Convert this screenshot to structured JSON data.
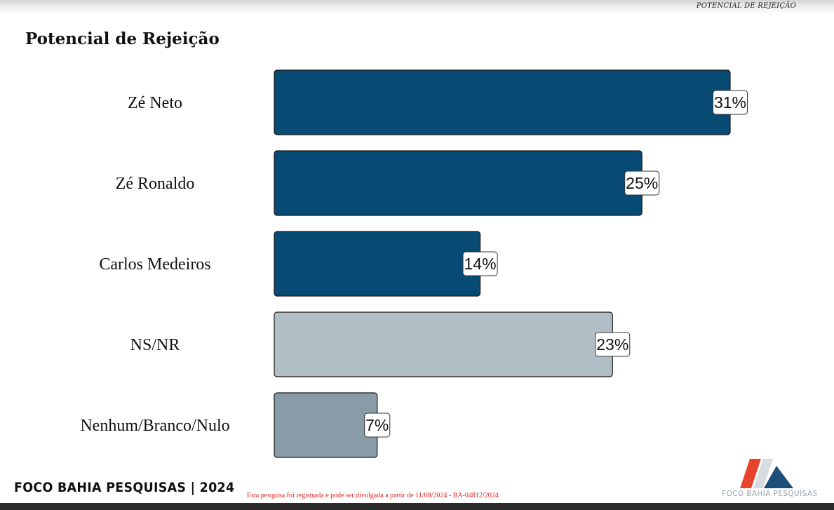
{
  "header": {
    "tag": "POTENCIAL DE REJEIÇÃO"
  },
  "title": "Potencial de Rejeição",
  "chart_data": {
    "type": "bar",
    "orientation": "horizontal",
    "categories": [
      "Zé Neto",
      "Zé Ronaldo",
      "Carlos Medeiros",
      "NS/NR",
      "Nenhum/Branco/Nulo"
    ],
    "values": [
      31,
      25,
      14,
      23,
      7
    ],
    "value_labels": [
      "31%",
      "25%",
      "14%",
      "23%",
      "7%"
    ],
    "colors": [
      "#074b74",
      "#074b74",
      "#074b74",
      "#b1bec6",
      "#8a9ba8"
    ],
    "xlim": [
      0,
      31
    ],
    "grid": false
  },
  "footer": {
    "brand": "FOCO BAHIA PESQUISAS | 2024",
    "note": "Esta pesquisa foi registrada e pode ser divulgada a partir de 11/08/2024 - BA-04812/2024",
    "logo_text": "FOCO BAHIA PESQUISAS",
    "logo_colors": [
      "#e8432c",
      "#d8dde2",
      "#1d4e79"
    ]
  }
}
